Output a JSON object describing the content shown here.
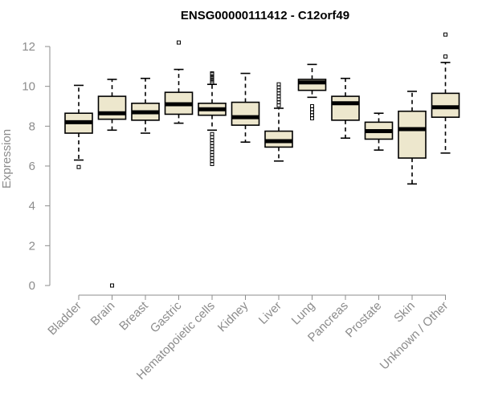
{
  "chart_data": {
    "type": "boxplot",
    "title": "ENSG00000111412 - C12orf49",
    "ylabel": "Expression",
    "xlabel": "",
    "ylim": [
      0,
      12.5
    ],
    "yticks": [
      0,
      2,
      4,
      6,
      8,
      10,
      12
    ],
    "box_fill": "#ede7cd",
    "axis_color": "#8c8c8c",
    "grid": false,
    "categories": [
      "Bladder",
      "Brain",
      "Breast",
      "Gastric",
      "Hematopoietic cells",
      "Kidney",
      "Liver",
      "Lung",
      "Pancreas",
      "Prostate",
      "Skin",
      "Unknown / Other"
    ],
    "boxes": [
      {
        "name": "Bladder",
        "whislo": 6.3,
        "q1": 7.65,
        "med": 8.2,
        "q3": 8.65,
        "whishi": 10.05,
        "fliers": [
          5.95
        ]
      },
      {
        "name": "Brain",
        "whislo": 7.8,
        "q1": 8.35,
        "med": 8.65,
        "q3": 9.5,
        "whishi": 10.35,
        "fliers": [
          0.0
        ]
      },
      {
        "name": "Breast",
        "whislo": 7.65,
        "q1": 8.3,
        "med": 8.7,
        "q3": 9.15,
        "whishi": 10.4,
        "fliers": []
      },
      {
        "name": "Gastric",
        "whislo": 8.15,
        "q1": 8.6,
        "med": 9.1,
        "q3": 9.7,
        "whishi": 10.85,
        "fliers": [
          12.2
        ]
      },
      {
        "name": "Hematopoietic cells",
        "whislo": 7.8,
        "q1": 8.55,
        "med": 8.85,
        "q3": 9.15,
        "whishi": 10.1,
        "fliers": [
          10.2,
          10.3,
          10.4,
          10.5,
          10.6,
          10.65,
          7.6,
          7.45,
          7.3,
          7.15,
          7.0,
          6.85,
          6.7,
          6.55,
          6.4,
          6.25,
          6.1
        ]
      },
      {
        "name": "Kidney",
        "whislo": 7.2,
        "q1": 8.05,
        "med": 8.45,
        "q3": 9.2,
        "whishi": 10.65,
        "fliers": []
      },
      {
        "name": "Liver",
        "whislo": 6.25,
        "q1": 6.95,
        "med": 7.25,
        "q3": 7.75,
        "whishi": 8.9,
        "fliers": [
          9.05,
          9.2,
          9.35,
          9.5,
          9.65,
          9.8,
          9.95,
          10.1
        ]
      },
      {
        "name": "Lung",
        "whislo": 9.45,
        "q1": 9.8,
        "med": 10.2,
        "q3": 10.35,
        "whishi": 11.1,
        "fliers": [
          9.0,
          8.85,
          8.7,
          8.55,
          8.4
        ]
      },
      {
        "name": "Pancreas",
        "whislo": 7.4,
        "q1": 8.3,
        "med": 9.15,
        "q3": 9.5,
        "whishi": 10.4,
        "fliers": []
      },
      {
        "name": "Prostate",
        "whislo": 6.8,
        "q1": 7.35,
        "med": 7.75,
        "q3": 8.2,
        "whishi": 8.65,
        "fliers": []
      },
      {
        "name": "Skin",
        "whislo": 5.1,
        "q1": 6.4,
        "med": 7.85,
        "q3": 8.75,
        "whishi": 9.75,
        "fliers": []
      },
      {
        "name": "Unknown / Other",
        "whislo": 6.65,
        "q1": 8.45,
        "med": 8.95,
        "q3": 9.65,
        "whishi": 11.2,
        "fliers": [
          11.5,
          12.6
        ]
      }
    ]
  }
}
